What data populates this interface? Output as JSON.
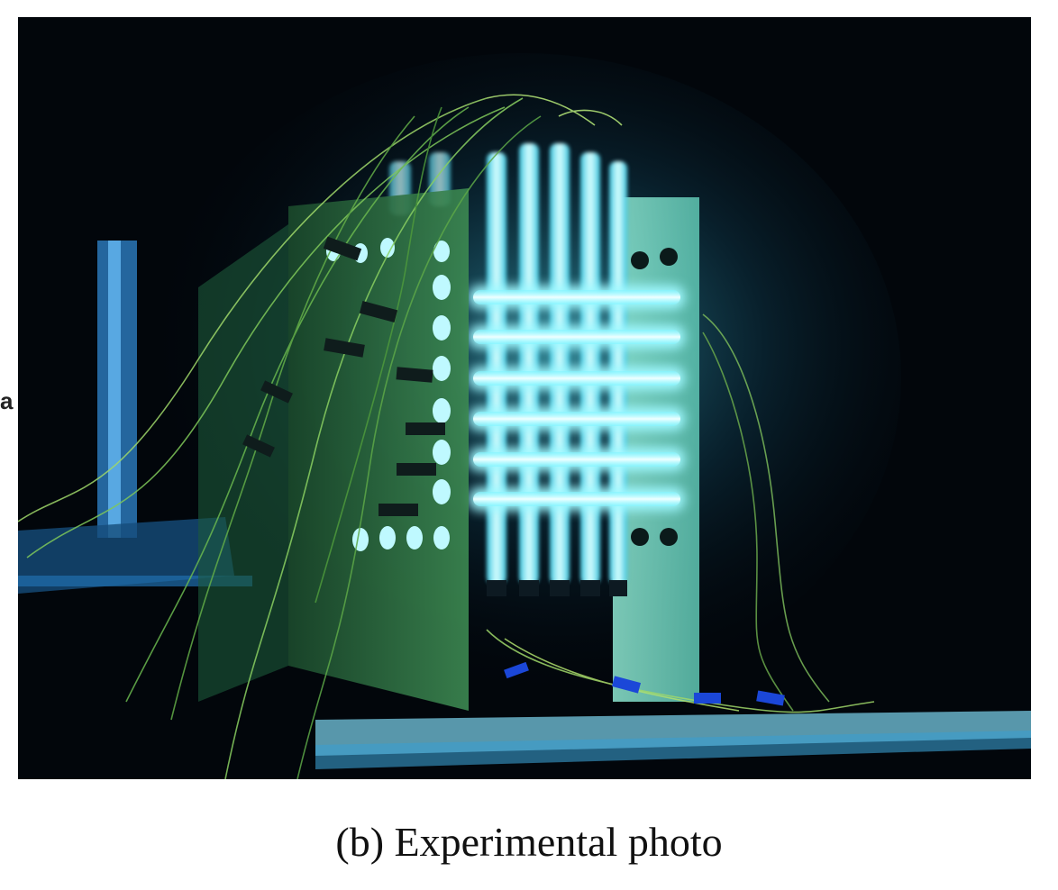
{
  "photo": {
    "subject_icon": "glowing-tube-array-photo",
    "glow_color": "#6ff6ff",
    "background_color": "#02060b"
  },
  "edge_label": "a",
  "caption": "(b) Experimental photo"
}
